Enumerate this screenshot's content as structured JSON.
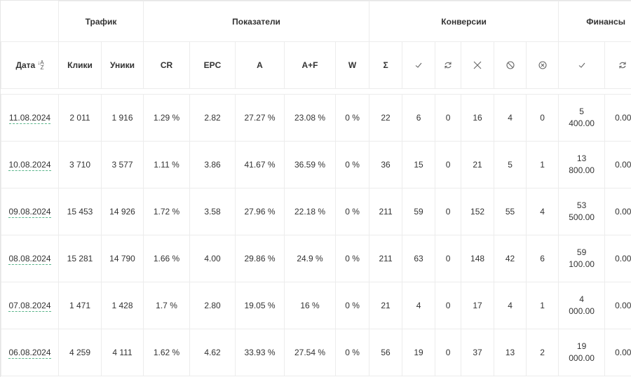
{
  "groups": {
    "traffic": "Трафик",
    "indicators": "Показатели",
    "conversions": "Конверсии",
    "finance": "Финансы"
  },
  "columns": {
    "date": "Дата",
    "clicks": "Клики",
    "uniques": "Уники",
    "cr": "CR",
    "epc": "EPC",
    "a": "A",
    "af": "A+F",
    "w": "W",
    "sum": "Σ"
  },
  "icons": {
    "date_sort": "sort-ascending-icon",
    "conv_approved": "check-icon",
    "conv_hold": "refresh-icon",
    "conv_rejected": "cross-icon",
    "conv_trash": "forbidden-icon",
    "conv_cancel": "circle-x-icon",
    "fin_approved": "check-icon",
    "fin_hold": "refresh-icon"
  },
  "rows": [
    {
      "date": "11.08.2024",
      "clicks": "2 011",
      "uniques": "1 916",
      "cr": "1.29 %",
      "epc": "2.82",
      "a": "27.27 %",
      "af": "23.08 %",
      "w": "0 %",
      "sum": "22",
      "approved": "6",
      "hold": "0",
      "rejected": "16",
      "trash": "4",
      "cancel": "0",
      "fin_approved_1": "5",
      "fin_approved_2": "400.00",
      "fin_hold": "0.00"
    },
    {
      "date": "10.08.2024",
      "clicks": "3 710",
      "uniques": "3 577",
      "cr": "1.11 %",
      "epc": "3.86",
      "a": "41.67 %",
      "af": "36.59 %",
      "w": "0 %",
      "sum": "36",
      "approved": "15",
      "hold": "0",
      "rejected": "21",
      "trash": "5",
      "cancel": "1",
      "fin_approved_1": "13",
      "fin_approved_2": "800.00",
      "fin_hold": "0.00"
    },
    {
      "date": "09.08.2024",
      "clicks": "15 453",
      "uniques": "14 926",
      "cr": "1.72 %",
      "epc": "3.58",
      "a": "27.96 %",
      "af": "22.18 %",
      "w": "0 %",
      "sum": "211",
      "approved": "59",
      "hold": "0",
      "rejected": "152",
      "trash": "55",
      "cancel": "4",
      "fin_approved_1": "53",
      "fin_approved_2": "500.00",
      "fin_hold": "0.00"
    },
    {
      "date": "08.08.2024",
      "clicks": "15 281",
      "uniques": "14 790",
      "cr": "1.66 %",
      "epc": "4.00",
      "a": "29.86 %",
      "af": "24.9 %",
      "w": "0 %",
      "sum": "211",
      "approved": "63",
      "hold": "0",
      "rejected": "148",
      "trash": "42",
      "cancel": "6",
      "fin_approved_1": "59",
      "fin_approved_2": "100.00",
      "fin_hold": "0.00"
    },
    {
      "date": "07.08.2024",
      "clicks": "1 471",
      "uniques": "1 428",
      "cr": "1.7 %",
      "epc": "2.80",
      "a": "19.05 %",
      "af": "16 %",
      "w": "0 %",
      "sum": "21",
      "approved": "4",
      "hold": "0",
      "rejected": "17",
      "trash": "4",
      "cancel": "1",
      "fin_approved_1": "4",
      "fin_approved_2": "000.00",
      "fin_hold": "0.00"
    },
    {
      "date": "06.08.2024",
      "clicks": "4 259",
      "uniques": "4 111",
      "cr": "1.62 %",
      "epc": "4.62",
      "a": "33.93 %",
      "af": "27.54 %",
      "w": "0 %",
      "sum": "56",
      "approved": "19",
      "hold": "0",
      "rejected": "37",
      "trash": "13",
      "cancel": "2",
      "fin_approved_1": "19",
      "fin_approved_2": "000.00",
      "fin_hold": "0.00"
    }
  ]
}
